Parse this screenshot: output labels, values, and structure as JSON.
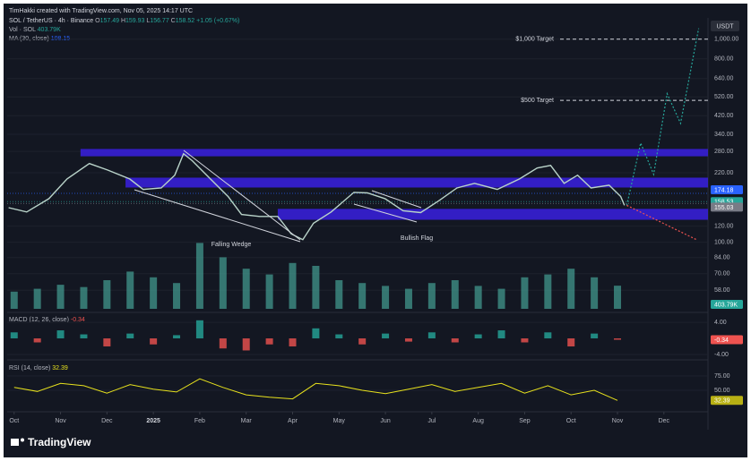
{
  "header": {
    "credit": "TimHakki created with TradingView.com, Nov 05, 2025 14:17 UTC",
    "symbol": "SOL / TetherUS · 4h · Binance",
    "ohlc": [
      {
        "label": "O",
        "value": 157.49
      },
      {
        "label": "H",
        "value": 159.93
      },
      {
        "label": "L",
        "value": 156.77
      },
      {
        "label": "C",
        "value": 158.52
      }
    ],
    "change": "+1.05 (+0.67%)",
    "ma_label": "MA (30, close)",
    "ma_value": 108.15,
    "currency": "USDT",
    "brand": "TradingView"
  },
  "chart_data": [
    {
      "type": "line",
      "log_scale": true,
      "ylim": [
        47,
        1210
      ],
      "xlim": [
        -0.15,
        14.95
      ],
      "yticks": [
        {
          "value": 1000,
          "label": "1,000.00"
        },
        {
          "value": 800,
          "label": "800.00"
        },
        {
          "value": 640,
          "label": "640.00"
        },
        {
          "value": 520,
          "label": "520.00"
        },
        {
          "value": 420,
          "label": "420.00"
        },
        {
          "value": 340,
          "label": "340.00"
        },
        {
          "value": 280,
          "label": "280.00"
        },
        {
          "value": 220,
          "label": "220.00"
        },
        {
          "value": 120,
          "label": "120.00"
        },
        {
          "value": 100,
          "label": "100.00"
        },
        {
          "value": 84,
          "label": "84.00"
        },
        {
          "value": 70,
          "label": "70.00"
        },
        {
          "value": 58,
          "label": "58.00"
        }
      ],
      "xticks": [
        {
          "value": 0,
          "label": "Oct"
        },
        {
          "value": 1,
          "label": "Nov"
        },
        {
          "value": 2,
          "label": "Dec"
        },
        {
          "value": 3,
          "label": "2025"
        },
        {
          "value": 4,
          "label": "Feb"
        },
        {
          "value": 5,
          "label": "Mar"
        },
        {
          "value": 6,
          "label": "Apr"
        },
        {
          "value": 7,
          "label": "May"
        },
        {
          "value": 8,
          "label": "Jun"
        },
        {
          "value": 9,
          "label": "Jul"
        },
        {
          "value": 10,
          "label": "Aug"
        },
        {
          "value": 11,
          "label": "Sep"
        },
        {
          "value": 12,
          "label": "Oct"
        },
        {
          "value": 13,
          "label": "Nov"
        },
        {
          "value": 14,
          "label": "Dec"
        }
      ],
      "series": [
        {
          "color": "#b9d3c9",
          "x": [
            -0.12,
            0.27,
            0.75,
            1.14,
            1.62,
            2.01,
            2.49,
            2.78,
            3.17,
            3.46,
            3.65,
            3.84,
            4.23,
            4.61,
            4.9,
            5.29,
            5.68,
            5.97,
            6.22,
            6.45,
            6.83,
            7.32,
            7.61,
            7.99,
            8.38,
            8.76,
            9.15,
            9.54,
            9.92,
            10.41,
            10.89,
            11.27,
            11.56,
            11.85,
            12.14,
            12.43,
            12.82,
            13.07,
            13.15
          ],
          "values": [
            148,
            141,
            164,
            205,
            244,
            227,
            205,
            182,
            185,
            214,
            273,
            252,
            205,
            168,
            137,
            134,
            134,
            110,
            103,
            124,
            141,
            176,
            175,
            164,
            143,
            140,
            160,
            185,
            195,
            182,
            205,
            232,
            239,
            195,
            214,
            185,
            191,
            168,
            152
          ]
        },
        {
          "color": "#26a69a",
          "dashed": true,
          "x": [
            13.2,
            13.5,
            13.78,
            14.07,
            14.36,
            14.75
          ],
          "values": [
            152,
            308,
            216,
            539,
            385,
            1130
          ]
        },
        {
          "color": "#ef5350",
          "dashed": true,
          "x": [
            13.2,
            14.7
          ],
          "values": [
            152,
            103
          ]
        }
      ],
      "zones": [
        {
          "from": 265,
          "to": 288,
          "start": 1.43
        },
        {
          "from": 186,
          "to": 208,
          "start": 2.4
        },
        {
          "from": 129,
          "to": 146,
          "start": 5.68
        }
      ],
      "zone_color": "#3a20e0",
      "targets": [
        {
          "label": "$1,000 Target",
          "value": 1000
        },
        {
          "label": "$500 Target",
          "value": 500
        }
      ],
      "price_lines": [
        {
          "value": 174.18,
          "color": "#2962ff"
        },
        {
          "value": 158.53,
          "color": "#26a69a"
        },
        {
          "value": 155.03,
          "color": "#787b86"
        }
      ],
      "annotations": [
        "Falling Wedge",
        "Bullish Flag"
      ]
    },
    {
      "type": "bar",
      "label": "Vol · SOL",
      "ylim": [
        0,
        5000
      ],
      "color": "#3f8f86",
      "x": [
        0,
        0.5,
        1,
        1.5,
        2,
        2.5,
        3,
        3.5,
        4,
        4.5,
        5,
        5.5,
        6,
        6.5,
        7,
        7.5,
        8,
        8.5,
        9,
        9.5,
        10,
        10.5,
        11,
        11.5,
        12,
        12.5,
        13
      ],
      "values": [
        300,
        350,
        420,
        380,
        500,
        650,
        550,
        450,
        1150,
        900,
        700,
        600,
        800,
        750,
        500,
        450,
        400,
        350,
        450,
        500,
        400,
        350,
        550,
        600,
        700,
        550,
        403.79
      ],
      "current": {
        "value": 403.79,
        "label": "403.79K"
      }
    },
    {
      "type": "bar",
      "label": "MACD (12, 26, close)",
      "ylim": [
        -4.9,
        5.8
      ],
      "up_color": "#26a69a",
      "down_color": "#ef5350",
      "yticks": [
        {
          "value": 4,
          "label": "4.00"
        },
        {
          "value": -4,
          "label": "-4.00"
        }
      ],
      "x": [
        0,
        0.5,
        1,
        1.5,
        2,
        2.5,
        3,
        3.5,
        4,
        4.5,
        5,
        5.5,
        6,
        6.5,
        7,
        7.5,
        8,
        8.5,
        9,
        9.5,
        10,
        10.5,
        11,
        11.5,
        12,
        12.5,
        13
      ],
      "values": [
        1.5,
        -1,
        2,
        1,
        -2,
        1.2,
        -1.5,
        0.8,
        4.5,
        -2.5,
        -3,
        -1.5,
        -2,
        2.5,
        1,
        -1.5,
        1.2,
        -0.8,
        1.5,
        -1,
        1,
        2,
        -1,
        1.5,
        -2,
        1.2,
        -0.34
      ],
      "current": -0.34
    },
    {
      "type": "line",
      "label": "RSI (14, close)",
      "ylim": [
        15.6,
        98.4
      ],
      "color": "#e8e21d",
      "yticks": [
        {
          "value": 75,
          "label": "75.00"
        },
        {
          "value": 50,
          "label": "50.00"
        }
      ],
      "x": [
        0,
        0.5,
        1,
        1.5,
        2,
        2.5,
        3,
        3.5,
        4,
        4.5,
        5,
        5.5,
        6,
        6.5,
        7,
        7.5,
        8,
        8.5,
        9,
        9.5,
        10,
        10.5,
        11,
        11.5,
        12,
        12.5,
        13
      ],
      "values": [
        55,
        48,
        62,
        58,
        45,
        60,
        52,
        47,
        70,
        55,
        42,
        38,
        35,
        62,
        58,
        50,
        44,
        52,
        60,
        48,
        55,
        62,
        45,
        58,
        42,
        50,
        32.39
      ],
      "current": 32.39
    }
  ]
}
